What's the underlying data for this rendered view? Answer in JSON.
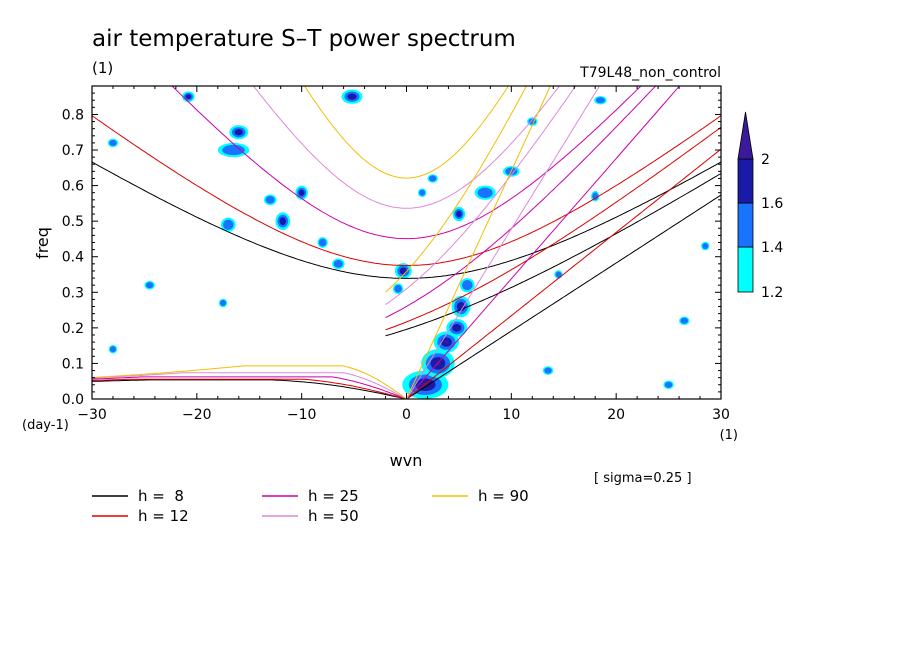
{
  "chart_data": {
    "type": "line",
    "title": "air temperature S–T power spectrum",
    "title_unit": "(1)",
    "run_label": "T79L48_non_control",
    "xlabel": "wvn",
    "ylabel": "freq",
    "x_unit": "(1)",
    "y_unit": "(day-1)",
    "note": "[ sigma=0.25 ]",
    "xlim": [
      -30,
      30
    ],
    "ylim": [
      0,
      0.88
    ],
    "x_ticks": [
      -30,
      -20,
      -10,
      0,
      10,
      20,
      30
    ],
    "y_ticks": [
      0.0,
      0.1,
      0.2,
      0.3,
      0.4,
      0.5,
      0.6,
      0.7,
      0.8
    ],
    "x_tick_labels": [
      "−30",
      "−20",
      "−10",
      "0",
      "10",
      "20",
      "30"
    ],
    "y_tick_labels": [
      "0.0",
      "0.1",
      "0.2",
      "0.3",
      "0.4",
      "0.5",
      "0.6",
      "0.7",
      "0.8"
    ],
    "colorbar": {
      "levels": [
        1.2,
        1.4,
        1.6,
        2
      ],
      "labels": [
        "1.2",
        "1.4",
        "1.6",
        "2"
      ],
      "colors": [
        "#00ffff",
        "#1a73ff",
        "#1a1aa8",
        "#3a1a9a"
      ]
    },
    "series": [
      {
        "name": "h =  8",
        "h": 8,
        "color": "#000000"
      },
      {
        "name": "h = 12",
        "h": 12,
        "color": "#dd0000"
      },
      {
        "name": "h = 25",
        "h": 25,
        "color": "#cc00aa"
      },
      {
        "name": "h = 50",
        "h": 50,
        "color": "#dd88dd"
      },
      {
        "name": "h = 90",
        "h": 90,
        "color": "#f0c000"
      }
    ],
    "contour_blobs": [
      {
        "x": 1.8,
        "y": 0.04,
        "rx": 2.2,
        "ry": 0.04,
        "level": 3
      },
      {
        "x": 3.0,
        "y": 0.1,
        "rx": 1.6,
        "ry": 0.04,
        "level": 3
      },
      {
        "x": 3.8,
        "y": 0.16,
        "rx": 1.2,
        "ry": 0.03,
        "level": 3
      },
      {
        "x": 4.8,
        "y": 0.2,
        "rx": 1.0,
        "ry": 0.025,
        "level": 2
      },
      {
        "x": 5.2,
        "y": 0.26,
        "rx": 0.9,
        "ry": 0.03,
        "level": 2
      },
      {
        "x": 5.8,
        "y": 0.32,
        "rx": 0.7,
        "ry": 0.02,
        "level": 1
      },
      {
        "x": -0.3,
        "y": 0.36,
        "rx": 0.8,
        "ry": 0.022,
        "level": 2
      },
      {
        "x": -0.8,
        "y": 0.31,
        "rx": 0.5,
        "ry": 0.015,
        "level": 1
      },
      {
        "x": -16.0,
        "y": 0.75,
        "rx": 0.9,
        "ry": 0.02,
        "level": 2
      },
      {
        "x": -16.5,
        "y": 0.7,
        "rx": 1.5,
        "ry": 0.02,
        "level": 1
      },
      {
        "x": -11.8,
        "y": 0.5,
        "rx": 0.7,
        "ry": 0.025,
        "level": 2
      },
      {
        "x": -10.0,
        "y": 0.58,
        "rx": 0.6,
        "ry": 0.02,
        "level": 2
      },
      {
        "x": -5.2,
        "y": 0.85,
        "rx": 1.0,
        "ry": 0.02,
        "level": 2
      },
      {
        "x": -17.0,
        "y": 0.49,
        "rx": 0.7,
        "ry": 0.02,
        "level": 1
      },
      {
        "x": 5.0,
        "y": 0.52,
        "rx": 0.6,
        "ry": 0.02,
        "level": 2
      },
      {
        "x": 7.5,
        "y": 0.58,
        "rx": 1.0,
        "ry": 0.02,
        "level": 1
      },
      {
        "x": 10.0,
        "y": 0.64,
        "rx": 0.8,
        "ry": 0.015,
        "level": 1
      },
      {
        "x": -6.5,
        "y": 0.38,
        "rx": 0.6,
        "ry": 0.015,
        "level": 1
      },
      {
        "x": -8.0,
        "y": 0.44,
        "rx": 0.5,
        "ry": 0.015,
        "level": 1
      },
      {
        "x": -24.5,
        "y": 0.32,
        "rx": 0.5,
        "ry": 0.012,
        "level": 1
      },
      {
        "x": -20.8,
        "y": 0.85,
        "rx": 0.6,
        "ry": 0.015,
        "level": 2
      },
      {
        "x": -28.0,
        "y": 0.72,
        "rx": 0.5,
        "ry": 0.012,
        "level": 1
      },
      {
        "x": 18.0,
        "y": 0.57,
        "rx": 0.4,
        "ry": 0.015,
        "level": 1
      },
      {
        "x": 25.0,
        "y": 0.04,
        "rx": 0.5,
        "ry": 0.012,
        "level": 1
      },
      {
        "x": 26.5,
        "y": 0.22,
        "rx": 0.5,
        "ry": 0.012,
        "level": 1
      },
      {
        "x": 13.5,
        "y": 0.08,
        "rx": 0.5,
        "ry": 0.012,
        "level": 1
      },
      {
        "x": -17.5,
        "y": 0.27,
        "rx": 0.4,
        "ry": 0.012,
        "level": 1
      },
      {
        "x": -13.0,
        "y": 0.56,
        "rx": 0.6,
        "ry": 0.015,
        "level": 1
      },
      {
        "x": 2.5,
        "y": 0.62,
        "rx": 0.5,
        "ry": 0.012,
        "level": 1
      },
      {
        "x": 1.5,
        "y": 0.58,
        "rx": 0.4,
        "ry": 0.012,
        "level": 1
      },
      {
        "x": 12.0,
        "y": 0.78,
        "rx": 0.5,
        "ry": 0.012,
        "level": 1
      },
      {
        "x": 18.5,
        "y": 0.84,
        "rx": 0.6,
        "ry": 0.012,
        "level": 1
      },
      {
        "x": 28.5,
        "y": 0.43,
        "rx": 0.4,
        "ry": 0.012,
        "level": 1
      },
      {
        "x": -28.0,
        "y": 0.14,
        "rx": 0.4,
        "ry": 0.012,
        "level": 1
      },
      {
        "x": 14.5,
        "y": 0.35,
        "rx": 0.4,
        "ry": 0.012,
        "level": 1
      }
    ]
  }
}
